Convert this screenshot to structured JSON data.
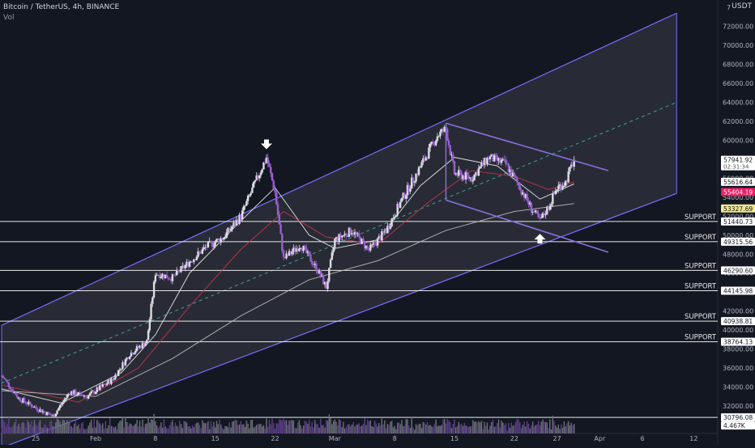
{
  "header": {
    "symbol": "Bitcoin / TetherUS, 4h, BINANCE",
    "volume_label": "Vol",
    "currency": "USDT"
  },
  "colors": {
    "background": "#131722",
    "up_candle": "#dcdde3",
    "down_candle": "#9a5fd1",
    "channel": "#7a6cff",
    "wedge": "#8b6fe0",
    "ma_fast": "#e6e6e6",
    "ma_mid": "#c2354a",
    "ma_slow": "#b9b9b9",
    "channel_mid": "#3aa39a",
    "badge_price": "#ffffff",
    "badge_red": "#e91e63",
    "badge_yellow": "#f0e68c"
  },
  "chart_data": {
    "type": "candlestick",
    "title": "Bitcoin / TetherUS, 4h, BINANCE",
    "y_axis": {
      "ticks": [
        32000,
        34000,
        36000,
        38000,
        40000,
        42000,
        44000,
        46000,
        48000,
        50000,
        52000,
        54000,
        56000,
        58000,
        60000,
        62000,
        64000,
        66000,
        68000,
        70000,
        72000
      ],
      "top_label": "7",
      "ylim": [
        29500,
        73400
      ]
    },
    "x_axis": {
      "ticks": [
        "25",
        "Feb",
        "8",
        "15",
        "22",
        "Mar",
        "8",
        "15",
        "22",
        "27",
        "Apr",
        "6",
        "12"
      ],
      "tick_dates": [
        "2021-01-25",
        "2021-02-01",
        "2021-02-08",
        "2021-02-15",
        "2021-02-22",
        "2021-03-01",
        "2021-03-08",
        "2021-03-15",
        "2021-03-22",
        "2021-03-27",
        "2021-04-01",
        "2021-04-06",
        "2021-04-12"
      ],
      "start_date": "2021-01-21",
      "end_date": "2021-04-15"
    },
    "price_path": [
      {
        "t": "2021-01-21",
        "p": 35200
      },
      {
        "t": "2021-01-23",
        "p": 32800
      },
      {
        "t": "2021-01-25",
        "p": 31800
      },
      {
        "t": "2021-01-27",
        "p": 30900
      },
      {
        "t": "2021-01-29",
        "p": 33500
      },
      {
        "t": "2021-01-31",
        "p": 33000
      },
      {
        "t": "2021-02-03",
        "p": 34800
      },
      {
        "t": "2021-02-05",
        "p": 37500
      },
      {
        "t": "2021-02-07",
        "p": 38800
      },
      {
        "t": "2021-02-08",
        "p": 46000
      },
      {
        "t": "2021-02-10",
        "p": 45500
      },
      {
        "t": "2021-02-12",
        "p": 47200
      },
      {
        "t": "2021-02-14",
        "p": 48800
      },
      {
        "t": "2021-02-16",
        "p": 49800
      },
      {
        "t": "2021-02-18",
        "p": 52000
      },
      {
        "t": "2021-02-20",
        "p": 56200
      },
      {
        "t": "2021-02-21",
        "p": 58200
      },
      {
        "t": "2021-02-22",
        "p": 54500
      },
      {
        "t": "2021-02-23",
        "p": 47500
      },
      {
        "t": "2021-02-25",
        "p": 49000
      },
      {
        "t": "2021-02-27",
        "p": 46300
      },
      {
        "t": "2021-02-28",
        "p": 44500
      },
      {
        "t": "2021-03-01",
        "p": 49500
      },
      {
        "t": "2021-03-03",
        "p": 50500
      },
      {
        "t": "2021-03-05",
        "p": 48400
      },
      {
        "t": "2021-03-07",
        "p": 50500
      },
      {
        "t": "2021-03-09",
        "p": 54000
      },
      {
        "t": "2021-03-11",
        "p": 57200
      },
      {
        "t": "2021-03-13",
        "p": 60500
      },
      {
        "t": "2021-03-14",
        "p": 61200
      },
      {
        "t": "2021-03-15",
        "p": 56500
      },
      {
        "t": "2021-03-17",
        "p": 56000
      },
      {
        "t": "2021-03-19",
        "p": 58200
      },
      {
        "t": "2021-03-21",
        "p": 57500
      },
      {
        "t": "2021-03-23",
        "p": 54500
      },
      {
        "t": "2021-03-24",
        "p": 52800
      },
      {
        "t": "2021-03-25",
        "p": 51500
      },
      {
        "t": "2021-03-26",
        "p": 53000
      },
      {
        "t": "2021-03-27",
        "p": 55000
      },
      {
        "t": "2021-03-28",
        "p": 55600
      },
      {
        "t": "2021-03-29",
        "p": 57941.92
      }
    ],
    "moving_averages": [
      {
        "name": "",
        "points": [
          [
            "2021-01-21",
            33800
          ],
          [
            "2021-01-28",
            32300
          ],
          [
            "2021-02-04",
            35500
          ],
          [
            "2021-02-08",
            39500
          ],
          [
            "2021-02-12",
            46000
          ],
          [
            "2021-02-18",
            51500
          ],
          [
            "2021-02-22",
            55000
          ],
          [
            "2021-02-26",
            50000
          ],
          [
            "2021-03-01",
            48600
          ],
          [
            "2021-03-06",
            49500
          ],
          [
            "2021-03-11",
            55200
          ],
          [
            "2021-03-15",
            58200
          ],
          [
            "2021-03-20",
            57300
          ],
          [
            "2021-03-25",
            53800
          ],
          [
            "2021-03-29",
            55404.19
          ]
        ]
      },
      {
        "name": "",
        "points": [
          [
            "2021-01-21",
            34200
          ],
          [
            "2021-01-30",
            32400
          ],
          [
            "2021-02-06",
            36000
          ],
          [
            "2021-02-12",
            42500
          ],
          [
            "2021-02-18",
            48500
          ],
          [
            "2021-02-23",
            52500
          ],
          [
            "2021-02-28",
            49800
          ],
          [
            "2021-03-06",
            49000
          ],
          [
            "2021-03-12",
            53500
          ],
          [
            "2021-03-17",
            56800
          ],
          [
            "2021-03-22",
            56200
          ],
          [
            "2021-03-26",
            54800
          ],
          [
            "2021-03-29",
            55616.64
          ]
        ]
      },
      {
        "name": "",
        "points": [
          [
            "2021-01-21",
            33600
          ],
          [
            "2021-02-01",
            33000
          ],
          [
            "2021-02-10",
            37000
          ],
          [
            "2021-02-18",
            41500
          ],
          [
            "2021-02-26",
            45300
          ],
          [
            "2021-03-06",
            47300
          ],
          [
            "2021-03-14",
            50500
          ],
          [
            "2021-03-22",
            52500
          ],
          [
            "2021-03-29",
            53327.69
          ]
        ]
      }
    ],
    "channel": {
      "upper": [
        [
          "2021-01-21",
          40500
        ],
        [
          "2021-04-10",
          73400
        ]
      ],
      "lower": [
        [
          "2021-01-21",
          27600
        ],
        [
          "2021-04-10",
          54400
        ]
      ],
      "mid": [
        [
          "2021-01-21",
          34400
        ],
        [
          "2021-04-10",
          64000
        ]
      ]
    },
    "wedge": {
      "upper": [
        [
          "2021-03-14",
          61800
        ],
        [
          "2021-04-02",
          56800
        ]
      ],
      "lower": [
        [
          "2021-03-14",
          53700
        ],
        [
          "2021-04-02",
          48200
        ]
      ]
    },
    "support_levels": [
      51440.73,
      49315.56,
      46290.6,
      44145.98,
      40938.81,
      38764.13,
      30796.08
    ],
    "support_label": "SUPPORT",
    "price_badges": [
      {
        "value": "57941.92",
        "sub": "02:31:34",
        "style": "price"
      },
      {
        "value": "55616.64",
        "style": "white"
      },
      {
        "value": "55404.19",
        "style": "red"
      },
      {
        "value": "53327.69",
        "style": "yellow"
      },
      {
        "value": "51440.73",
        "style": "white"
      },
      {
        "value": "49315.56",
        "style": "white"
      },
      {
        "value": "46290.60",
        "style": "white"
      },
      {
        "value": "44145.98",
        "style": "white"
      },
      {
        "value": "40938.81",
        "style": "white"
      },
      {
        "value": "38764.13",
        "style": "white"
      },
      {
        "value": "30796.08",
        "style": "white"
      },
      {
        "value": "4.467K",
        "style": "white"
      }
    ],
    "arrows": [
      {
        "t": "2021-02-21",
        "p": 59400,
        "direction": "down"
      },
      {
        "t": "2021-03-25",
        "p": 49800,
        "direction": "up"
      }
    ]
  }
}
